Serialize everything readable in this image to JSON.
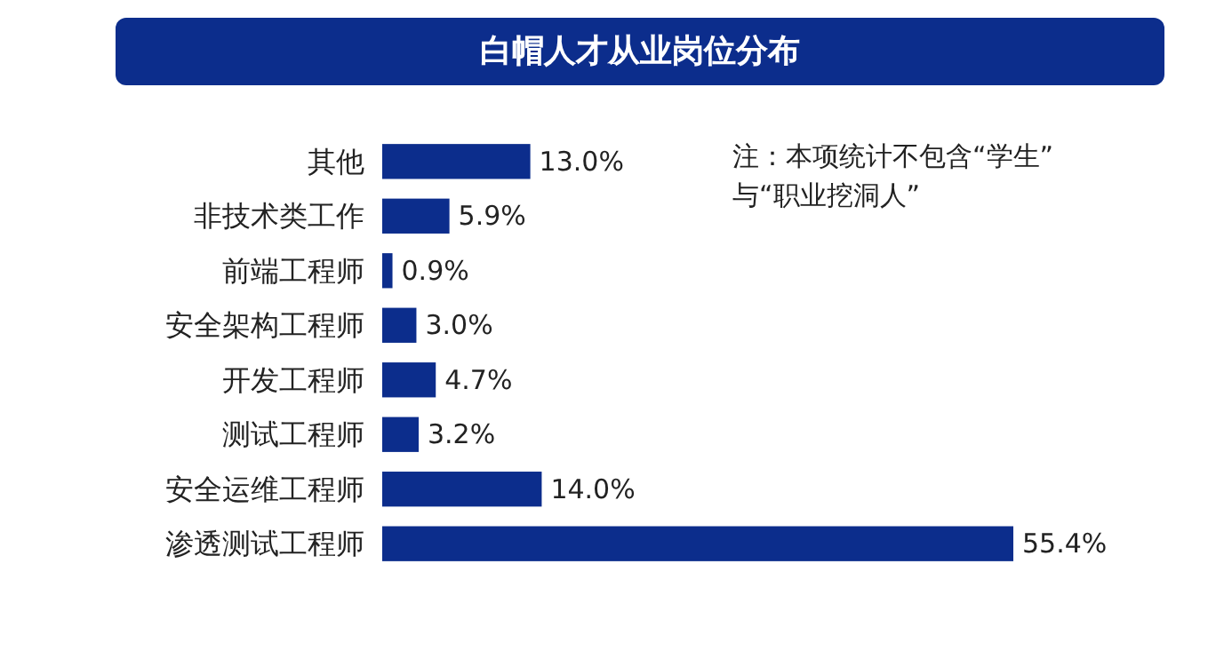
{
  "chart_data": {
    "type": "bar",
    "orientation": "horizontal",
    "title": "白帽人才从业岗位分布",
    "categories": [
      "其他",
      "非技术类工作",
      "前端工程师",
      "安全架构工程师",
      "开发工程师",
      "测试工程师",
      "安全运维工程师",
      "渗透测试工程师"
    ],
    "values": [
      13.0,
      5.9,
      0.9,
      3.0,
      4.7,
      3.2,
      14.0,
      55.4
    ],
    "value_labels": [
      "13.0%",
      "5.9%",
      "0.9%",
      "3.0%",
      "4.7%",
      "3.2%",
      "14.0%",
      "55.4%"
    ],
    "color": "#0c2d8c",
    "annotations": [
      "注：本项统计不包含“学生”\n与“职业挖洞人”"
    ]
  }
}
